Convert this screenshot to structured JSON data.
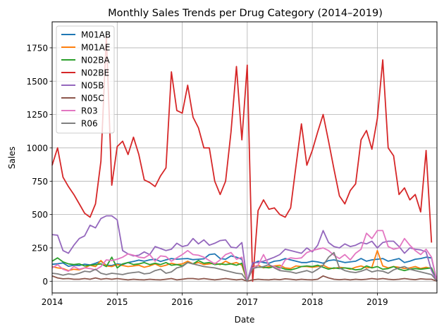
{
  "chart_data": {
    "type": "line",
    "title": "Monthly Sales Trends per Drug Category (2014–2019)",
    "xlabel": "Date",
    "ylabel": "Sales",
    "x_start": "2014-01",
    "x_ticks": [
      "2014",
      "2015",
      "2016",
      "2017",
      "2018",
      "2019"
    ],
    "y_ticks": [
      0,
      250,
      500,
      750,
      1000,
      1250,
      1500,
      1750
    ],
    "ylim": [
      -88,
      1945
    ],
    "grid": true,
    "legend_position": "top-left",
    "series": [
      {
        "name": "M01AB",
        "color": "#1f77b4",
        "values": [
          127,
          131,
          137,
          112,
          120,
          118,
          128,
          122,
          135,
          150,
          120,
          118,
          130,
          125,
          140,
          148,
          158,
          150,
          160,
          165,
          148,
          160,
          170,
          165,
          168,
          170,
          162,
          165,
          168,
          200,
          205,
          170,
          165,
          190,
          180,
          165,
          0,
          130,
          150,
          140,
          135,
          150,
          155,
          170,
          160,
          150,
          140,
          140,
          150,
          145,
          135,
          155,
          160,
          150,
          140,
          145,
          150,
          170,
          150,
          160,
          165,
          170,
          150,
          160,
          170,
          140,
          150,
          165,
          170,
          180,
          175,
          0
        ]
      },
      {
        "name": "M01AE",
        "color": "#ff7f0e",
        "values": [
          110,
          100,
          95,
          80,
          90,
          85,
          100,
          120,
          110,
          155,
          115,
          110,
          125,
          118,
          110,
          115,
          120,
          105,
          115,
          130,
          110,
          120,
          135,
          125,
          130,
          150,
          130,
          140,
          125,
          130,
          135,
          125,
          150,
          130,
          140,
          120,
          0,
          105,
          120,
          100,
          110,
          115,
          120,
          100,
          95,
          115,
          110,
          110,
          105,
          110,
          120,
          100,
          95,
          105,
          100,
          90,
          105,
          115,
          100,
          105,
          230,
          115,
          100,
          110,
          105,
          95,
          100,
          110,
          95,
          105,
          95,
          0
        ]
      },
      {
        "name": "N02BA",
        "color": "#2ca02c",
        "values": [
          150,
          175,
          145,
          130,
          125,
          130,
          115,
          120,
          125,
          130,
          110,
          180,
          100,
          130,
          140,
          125,
          130,
          140,
          125,
          135,
          125,
          140,
          120,
          125,
          115,
          140,
          130,
          155,
          135,
          140,
          125,
          130,
          125,
          130,
          120,
          135,
          0,
          110,
          105,
          105,
          100,
          110,
          105,
          90,
          85,
          95,
          110,
          115,
          110,
          120,
          105,
          90,
          100,
          95,
          100,
          95,
          85,
          90,
          115,
          100,
          110,
          90,
          95,
          110,
          90,
          80,
          90,
          95,
          90,
          95,
          100,
          0
        ]
      },
      {
        "name": "N02BE",
        "color": "#d62728",
        "values": [
          870,
          1000,
          780,
          710,
          650,
          580,
          510,
          480,
          580,
          900,
          1840,
          720,
          1010,
          1050,
          950,
          1080,
          950,
          760,
          740,
          710,
          790,
          850,
          1570,
          1280,
          1260,
          1470,
          1230,
          1150,
          1000,
          1000,
          750,
          650,
          750,
          1120,
          1610,
          1060,
          1620,
          0,
          530,
          610,
          540,
          550,
          500,
          480,
          550,
          870,
          1180,
          870,
          980,
          1120,
          1250,
          1050,
          840,
          640,
          580,
          680,
          730,
          1060,
          1130,
          990,
          1220,
          1660,
          1000,
          940,
          650,
          700,
          610,
          650,
          520,
          980,
          290
        ]
      },
      {
        "name": "N05B",
        "color": "#9467bd",
        "values": [
          350,
          345,
          230,
          210,
          270,
          320,
          340,
          420,
          400,
          470,
          490,
          490,
          460,
          230,
          205,
          190,
          195,
          220,
          200,
          260,
          245,
          230,
          240,
          285,
          260,
          270,
          320,
          280,
          310,
          270,
          285,
          305,
          310,
          255,
          250,
          290,
          0,
          140,
          140,
          150,
          165,
          180,
          200,
          240,
          230,
          220,
          210,
          250,
          220,
          270,
          380,
          290,
          260,
          250,
          280,
          260,
          270,
          290,
          280,
          300,
          250,
          290,
          300,
          300,
          260,
          210,
          250,
          240,
          235,
          220,
          80,
          0
        ]
      },
      {
        "name": "N05C",
        "color": "#8c564b",
        "values": [
          40,
          25,
          18,
          20,
          15,
          15,
          20,
          15,
          25,
          15,
          20,
          15,
          20,
          15,
          10,
          15,
          12,
          10,
          15,
          12,
          10,
          15,
          20,
          10,
          15,
          20,
          20,
          15,
          20,
          15,
          10,
          15,
          20,
          15,
          10,
          15,
          0,
          10,
          15,
          12,
          10,
          15,
          12,
          18,
          15,
          10,
          15,
          12,
          10,
          15,
          40,
          25,
          15,
          12,
          15,
          10,
          15,
          12,
          15,
          20,
          15,
          20,
          15,
          12,
          15,
          20,
          15,
          12,
          18,
          15,
          15,
          0
        ]
      },
      {
        "name": "R03",
        "color": "#e377c2",
        "values": [
          100,
          125,
          90,
          75,
          110,
          90,
          100,
          95,
          85,
          110,
          160,
          155,
          165,
          180,
          205,
          195,
          180,
          175,
          200,
          150,
          190,
          185,
          150,
          175,
          200,
          230,
          200,
          195,
          180,
          155,
          130,
          160,
          200,
          215,
          165,
          180,
          0,
          100,
          120,
          200,
          120,
          110,
          90,
          160,
          175,
          170,
          175,
          215,
          230,
          240,
          250,
          230,
          195,
          170,
          200,
          160,
          210,
          240,
          360,
          320,
          380,
          380,
          260,
          240,
          250,
          320,
          270,
          230,
          200,
          240,
          180,
          0
        ]
      },
      {
        "name": "R06",
        "color": "#7f7f7f",
        "values": [
          60,
          55,
          45,
          55,
          50,
          60,
          75,
          70,
          90,
          60,
          50,
          60,
          55,
          50,
          60,
          65,
          70,
          55,
          60,
          80,
          90,
          60,
          70,
          100,
          110,
          140,
          130,
          120,
          110,
          105,
          100,
          90,
          80,
          70,
          60,
          55,
          0,
          95,
          105,
          110,
          125,
          100,
          80,
          75,
          70,
          60,
          70,
          80,
          65,
          90,
          120,
          180,
          215,
          100,
          80,
          70,
          65,
          75,
          90,
          70,
          80,
          75,
          60,
          85,
          100,
          110,
          90,
          80,
          70,
          60,
          50,
          0
        ]
      }
    ]
  }
}
